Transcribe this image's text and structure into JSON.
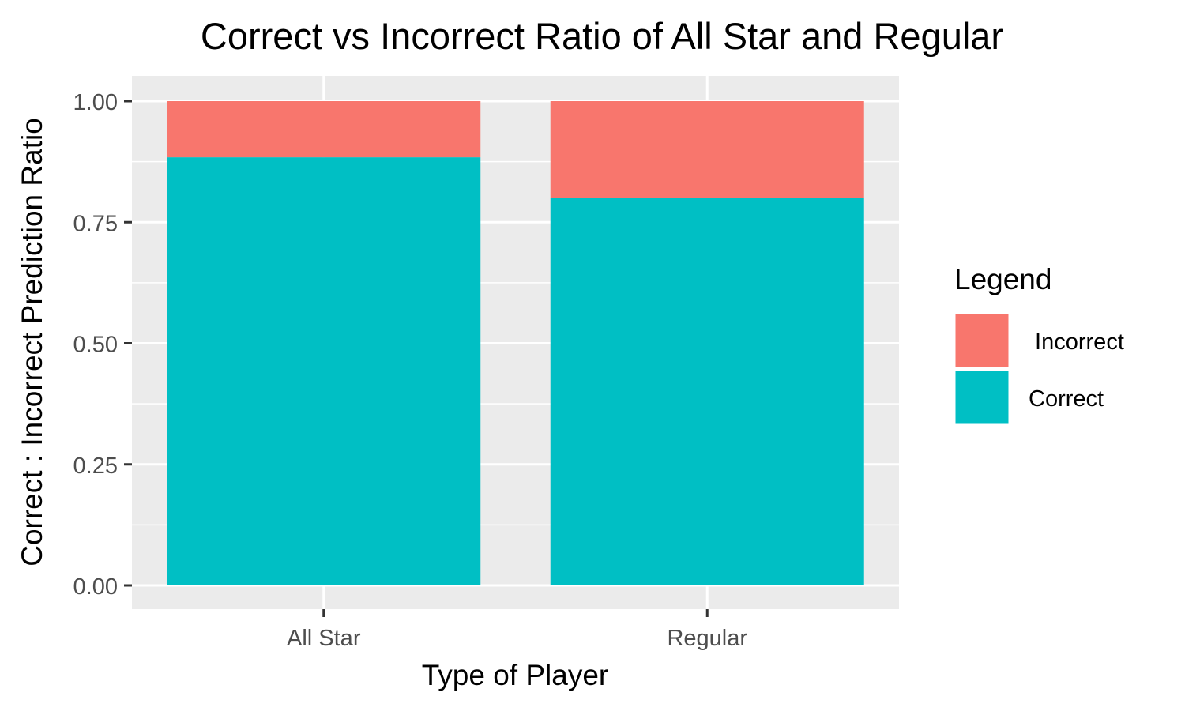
{
  "chart_data": {
    "type": "bar",
    "stacked": true,
    "title": "Correct vs Incorrect Ratio of All Star and Regular",
    "xlabel": "Type of Player",
    "ylabel": "Correct : Incorrect Prediction Ratio",
    "categories": [
      "All Star",
      "Regular"
    ],
    "ylim": [
      0,
      1
    ],
    "yticks": [
      0,
      0.25,
      0.5,
      0.75,
      1
    ],
    "ytick_labels": [
      "0.00",
      "0.25",
      "0.50",
      "0.75",
      "1.00"
    ],
    "grid": true,
    "legend": {
      "title": "Legend",
      "position": "right",
      "entries": [
        " Incorrect",
        "Correct"
      ]
    },
    "series": [
      {
        "name": "Correct",
        "values": [
          0.884,
          0.8
        ],
        "color": "#00BFC4"
      },
      {
        "name": " Incorrect",
        "values": [
          0.116,
          0.2
        ],
        "color": "#F8766D"
      }
    ],
    "colors": {
      "panel_bg": "#EBEBEB",
      "grid": "#FFFFFF",
      "tick_text": "#4D4D4D",
      "axis_tick": "#333333"
    }
  }
}
